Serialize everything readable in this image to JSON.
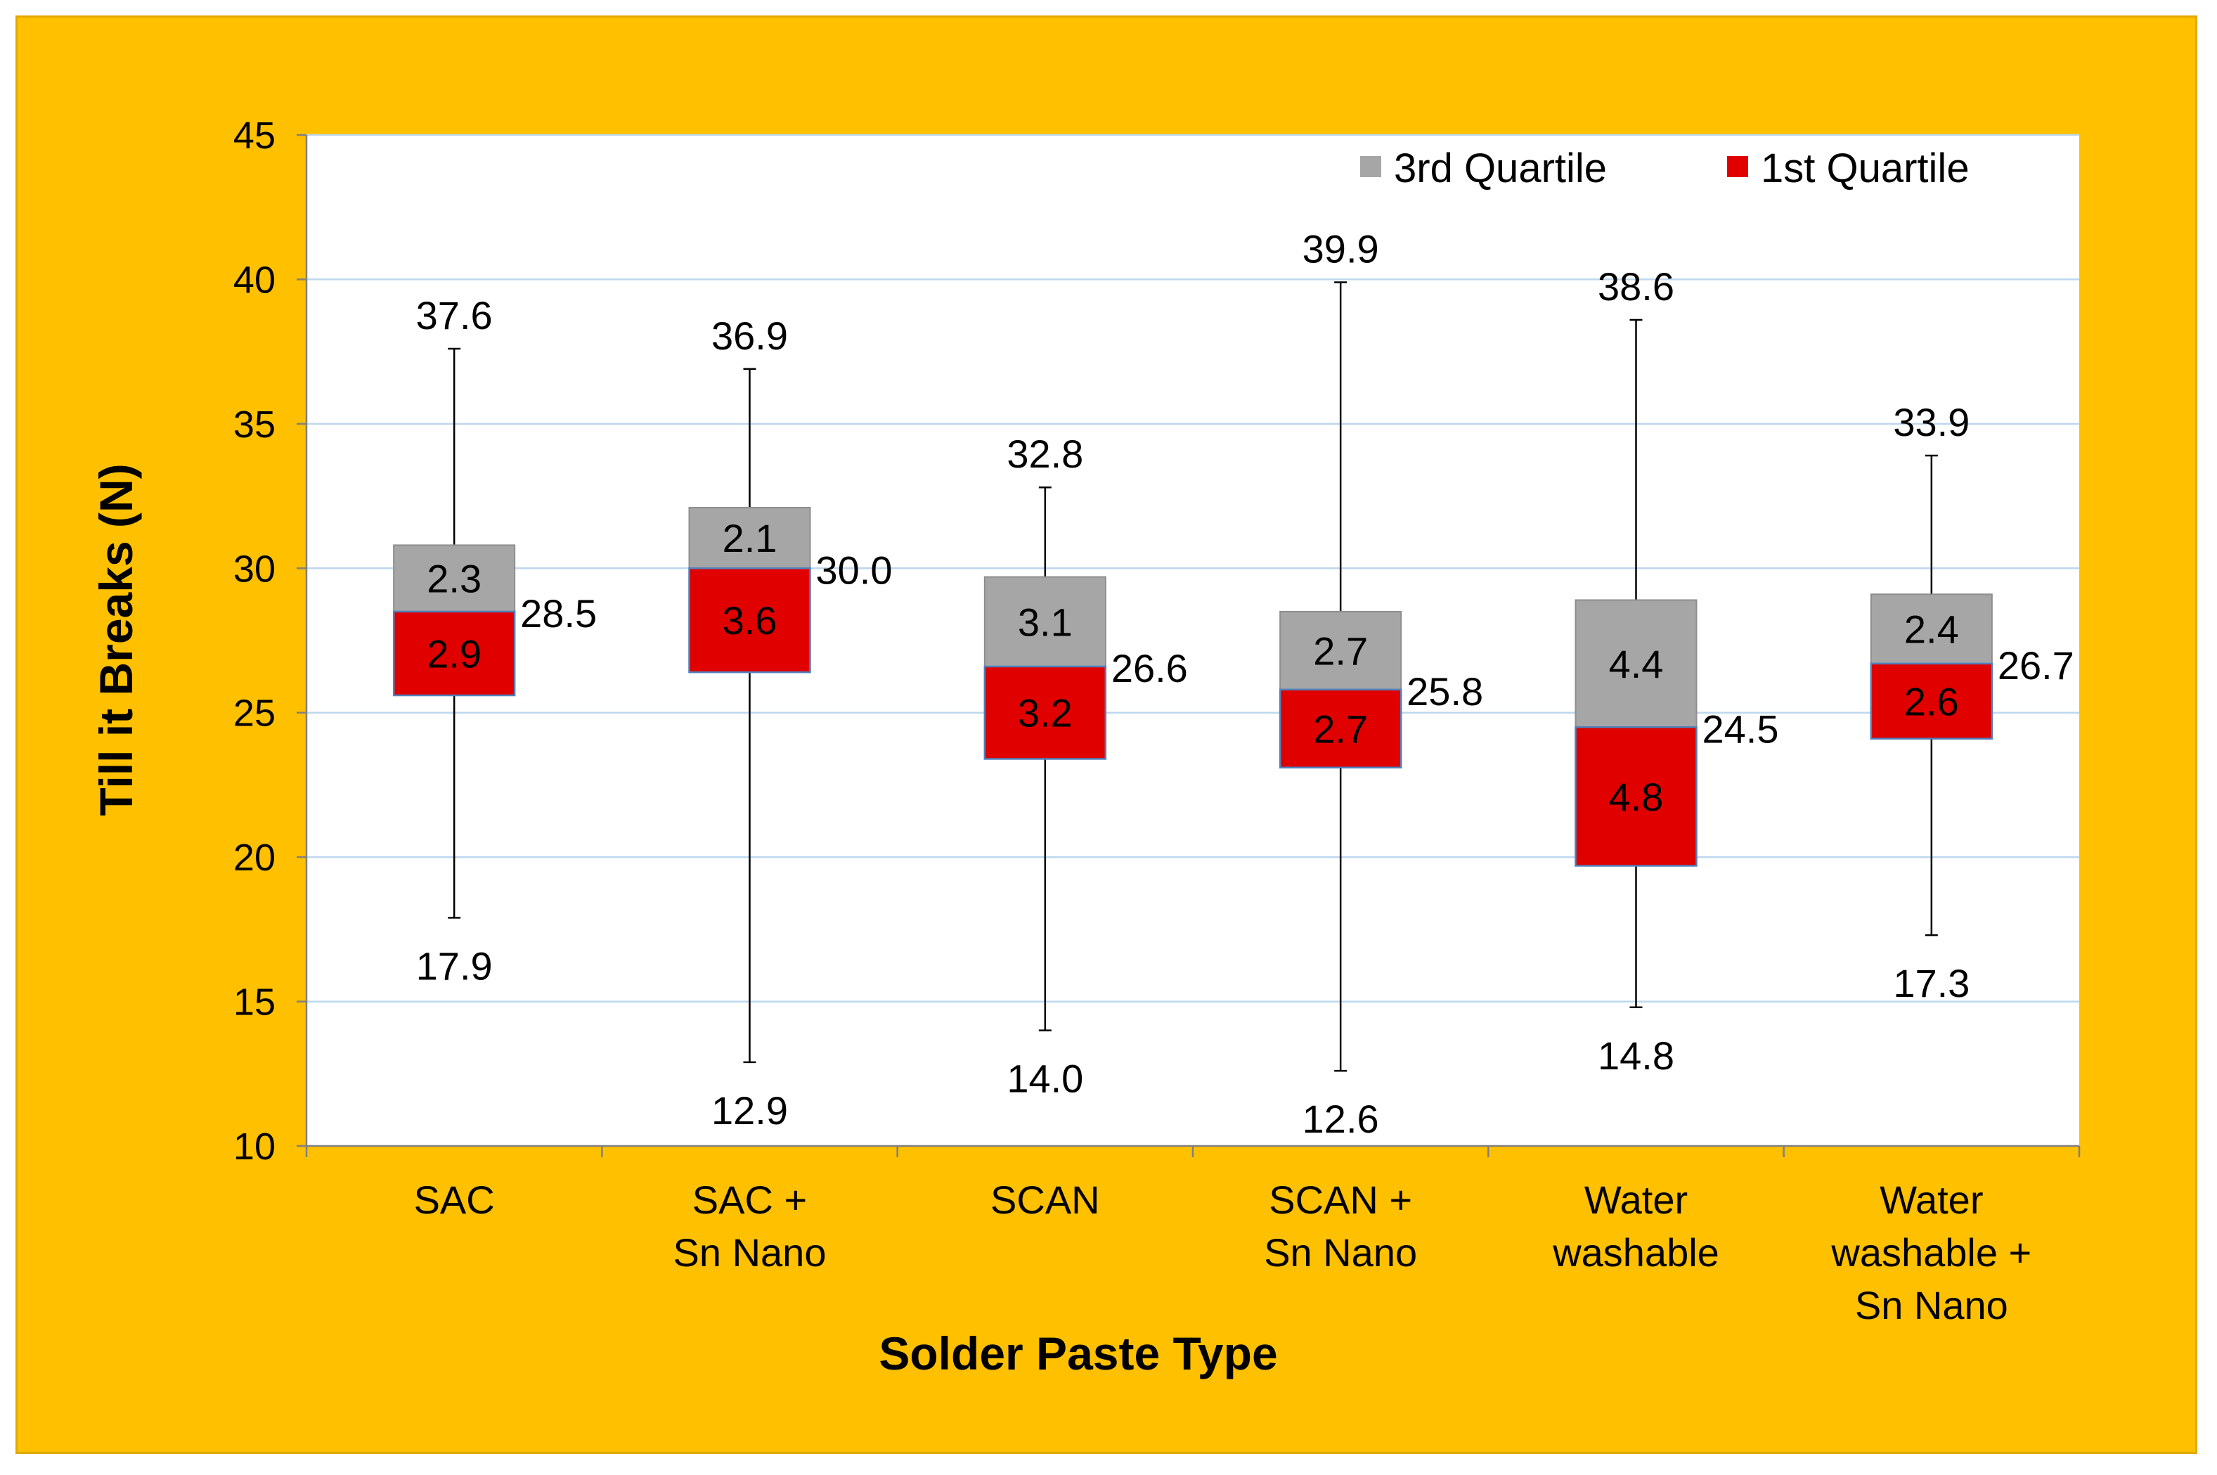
{
  "chart_data": {
    "type": "box",
    "title": "",
    "xlabel": "Solder Paste Type",
    "ylabel": "Till it Breaks (N)",
    "ylim": [
      10,
      45
    ],
    "yticks": [
      10,
      15,
      20,
      25,
      30,
      35,
      40,
      45
    ],
    "grid": true,
    "legend_position": "top-right",
    "legend": [
      {
        "name": "3rd Quartile",
        "color": "#A6A6A6"
      },
      {
        "name": "1st Quartile",
        "color": "#E00000"
      }
    ],
    "categories": [
      {
        "lines": [
          "SAC"
        ],
        "min": 17.9,
        "max": 37.6,
        "median": 28.5,
        "q1_range": 2.9,
        "q3_range": 2.3,
        "min_label": "17.9",
        "max_label": "37.6",
        "median_label": "28.5",
        "q1_label": "2.9",
        "q3_label": "2.3"
      },
      {
        "lines": [
          "SAC +",
          "Sn Nano"
        ],
        "min": 12.9,
        "max": 36.9,
        "median": 30.0,
        "q1_range": 3.6,
        "q3_range": 2.1,
        "min_label": "12.9",
        "max_label": "36.9",
        "median_label": "30.0",
        "q1_label": "3.6",
        "q3_label": "2.1"
      },
      {
        "lines": [
          "SCAN"
        ],
        "min": 14.0,
        "max": 32.8,
        "median": 26.6,
        "q1_range": 3.2,
        "q3_range": 3.1,
        "min_label": "14.0",
        "max_label": "32.8",
        "median_label": "26.6",
        "q1_label": "3.2",
        "q3_label": "3.1"
      },
      {
        "lines": [
          "SCAN +",
          "Sn Nano"
        ],
        "min": 12.6,
        "max": 39.9,
        "median": 25.8,
        "q1_range": 2.7,
        "q3_range": 2.7,
        "min_label": "12.6",
        "max_label": "39.9",
        "median_label": "25.8",
        "q1_label": "2.7",
        "q3_label": "2.7"
      },
      {
        "lines": [
          "Water",
          "washable"
        ],
        "min": 14.8,
        "max": 38.6,
        "median": 24.5,
        "q1_range": 4.8,
        "q3_range": 4.4,
        "min_label": "14.8",
        "max_label": "38.6",
        "median_label": "24.5",
        "q1_label": "4.8",
        "q3_label": "4.4"
      },
      {
        "lines": [
          "Water",
          "washable +",
          "Sn Nano"
        ],
        "min": 17.3,
        "max": 33.9,
        "median": 26.7,
        "q1_range": 2.6,
        "q3_range": 2.4,
        "min_label": "17.3",
        "max_label": "33.9",
        "median_label": "26.7",
        "q1_label": "2.6",
        "q3_label": "2.4"
      }
    ]
  }
}
